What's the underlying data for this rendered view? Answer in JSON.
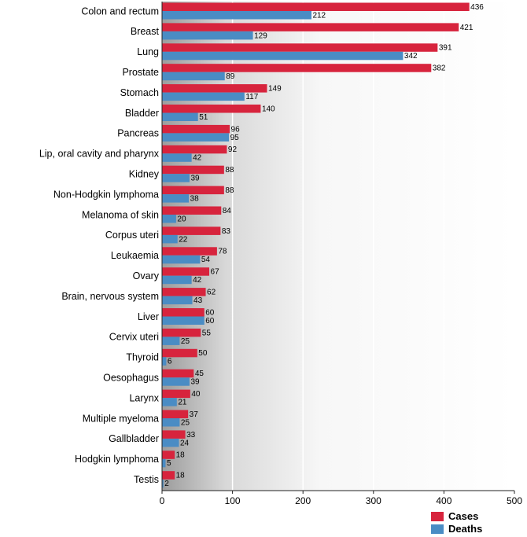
{
  "chart_data": {
    "type": "bar",
    "orientation": "horizontal",
    "categories": [
      "Colon and rectum",
      "Breast",
      "Lung",
      "Prostate",
      "Stomach",
      "Bladder",
      "Pancreas",
      "Lip, oral cavity and pharynx",
      "Kidney",
      "Non-Hodgkin lymphoma",
      "Melanoma of skin",
      "Corpus uteri",
      "Leukaemia",
      "Ovary",
      "Brain, nervous system",
      "Liver",
      "Cervix uteri",
      "Thyroid",
      "Oesophagus",
      "Larynx",
      "Multiple myeloma",
      "Gallbladder",
      "Hodgkin lymphoma",
      "Testis"
    ],
    "series": [
      {
        "name": "Cases",
        "color": "#d7243d",
        "values": [
          436,
          421,
          391,
          382,
          149,
          140,
          96,
          92,
          88,
          88,
          84,
          83,
          78,
          67,
          62,
          60,
          55,
          50,
          45,
          40,
          37,
          33,
          18,
          18
        ]
      },
      {
        "name": "Deaths",
        "color": "#4a8cc4",
        "values": [
          212,
          129,
          342,
          89,
          117,
          51,
          95,
          42,
          39,
          38,
          20,
          22,
          54,
          42,
          43,
          60,
          25,
          6,
          39,
          21,
          25,
          24,
          5,
          2
        ]
      }
    ],
    "xlim": [
      0,
      500
    ],
    "xticks": [
      "0",
      "100",
      "200",
      "300",
      "400",
      "500"
    ],
    "grid": true,
    "legend_position": "bottom-right",
    "title": "",
    "xlabel": "",
    "ylabel": ""
  }
}
